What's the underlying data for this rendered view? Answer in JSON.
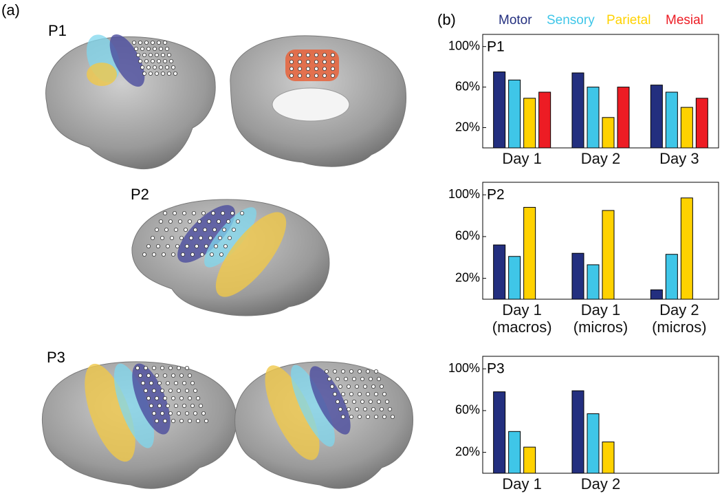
{
  "figure": {
    "panel_a_label": "(a)",
    "panel_b_label": "(b)",
    "brain_labels": [
      "P1",
      "P2",
      "P3"
    ]
  },
  "chart_data": [
    {
      "type": "bar",
      "title": "P1",
      "categories": [
        "Day 1",
        "Day 2",
        "Day 3"
      ],
      "series": [
        {
          "name": "Motor",
          "color": "#232f7f",
          "values": [
            75,
            74,
            62
          ]
        },
        {
          "name": "Sensory",
          "color": "#3fc6e8",
          "values": [
            67,
            60,
            55
          ]
        },
        {
          "name": "Parietal",
          "color": "#ffd200",
          "values": [
            49,
            30,
            40
          ]
        },
        {
          "name": "Mesial",
          "color": "#ed1c24",
          "values": [
            55,
            60,
            49
          ]
        }
      ],
      "ylim": [
        0,
        112
      ],
      "yticks": [
        {
          "value": 20,
          "label": "20%"
        },
        {
          "value": 60,
          "label": "60%"
        },
        {
          "value": 100,
          "label": "100%"
        }
      ]
    },
    {
      "type": "bar",
      "title": "P2",
      "categories": [
        "Day 1 (macros)",
        "Day 1 (micros)",
        "Day 2 (micros)"
      ],
      "series": [
        {
          "name": "Motor",
          "color": "#232f7f",
          "values": [
            52,
            44,
            9
          ]
        },
        {
          "name": "Sensory",
          "color": "#3fc6e8",
          "values": [
            41,
            33,
            43
          ]
        },
        {
          "name": "Parietal",
          "color": "#ffd200",
          "values": [
            88,
            85,
            97
          ]
        }
      ],
      "ylim": [
        0,
        112
      ],
      "yticks": [
        {
          "value": 20,
          "label": "20%"
        },
        {
          "value": 60,
          "label": "60%"
        },
        {
          "value": 100,
          "label": "100%"
        }
      ]
    },
    {
      "type": "bar",
      "title": "P3",
      "categories": [
        "Day 1",
        "Day 2",
        null
      ],
      "series": [
        {
          "name": "Motor",
          "color": "#232f7f",
          "values": [
            78,
            79,
            null
          ]
        },
        {
          "name": "Sensory",
          "color": "#3fc6e8",
          "values": [
            40,
            57,
            null
          ]
        },
        {
          "name": "Parietal",
          "color": "#ffd200",
          "values": [
            25,
            30,
            null
          ]
        }
      ],
      "ylim": [
        0,
        112
      ],
      "yticks": [
        {
          "value": 20,
          "label": "20%"
        },
        {
          "value": 60,
          "label": "60%"
        },
        {
          "value": 100,
          "label": "100%"
        }
      ]
    }
  ]
}
